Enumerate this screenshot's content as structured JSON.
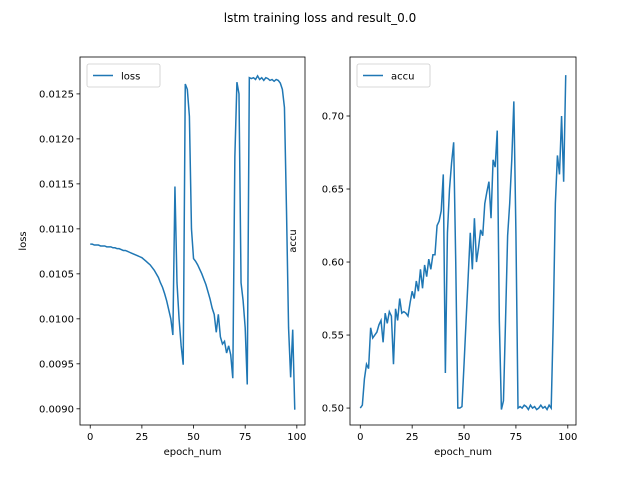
{
  "title": "lstm training loss and result_0.0",
  "chart_data": [
    {
      "type": "line",
      "xlabel": "epoch_num",
      "ylabel": "loss",
      "legend": "upper left",
      "x": [
        0,
        1,
        2,
        3,
        4,
        5,
        6,
        7,
        8,
        9,
        10,
        11,
        12,
        13,
        14,
        15,
        16,
        17,
        18,
        19,
        20,
        21,
        22,
        23,
        24,
        25,
        26,
        27,
        28,
        29,
        30,
        31,
        32,
        33,
        34,
        35,
        36,
        37,
        38,
        39,
        40,
        41,
        42,
        43,
        44,
        45,
        46,
        47,
        48,
        49,
        50,
        51,
        52,
        53,
        54,
        55,
        56,
        57,
        58,
        59,
        60,
        61,
        62,
        63,
        64,
        65,
        66,
        67,
        68,
        69,
        70,
        71,
        72,
        73,
        74,
        75,
        76,
        77,
        78,
        79,
        80,
        81,
        82,
        83,
        84,
        85,
        86,
        87,
        88,
        89,
        90,
        91,
        92,
        93,
        94,
        95,
        96,
        97,
        98,
        99
      ],
      "series": [
        {
          "name": "loss",
          "color": "#1f77b4",
          "values": [
            0.01083,
            0.01083,
            0.01082,
            0.01082,
            0.01082,
            0.01081,
            0.01081,
            0.01081,
            0.0108,
            0.0108,
            0.0108,
            0.01079,
            0.01079,
            0.01078,
            0.01078,
            0.01077,
            0.01076,
            0.01076,
            0.01075,
            0.01074,
            0.01073,
            0.01072,
            0.01071,
            0.0107,
            0.01069,
            0.01068,
            0.01066,
            0.01064,
            0.01062,
            0.0106,
            0.01057,
            0.01054,
            0.0105,
            0.01046,
            0.0104,
            0.01035,
            0.01028,
            0.0102,
            0.0101,
            0.01,
            0.00982,
            0.01147,
            0.0104,
            0.01,
            0.0097,
            0.00949,
            0.01261,
            0.01255,
            0.01225,
            0.011,
            0.01067,
            0.01064,
            0.0106,
            0.01055,
            0.0105,
            0.01044,
            0.01038,
            0.0103,
            0.01022,
            0.01012,
            0.01005,
            0.00985,
            0.01005,
            0.0098,
            0.00972,
            0.00975,
            0.00962,
            0.0097,
            0.0096,
            0.00934,
            0.0118,
            0.01263,
            0.0125,
            0.0104,
            0.0102,
            0.0099,
            0.00927,
            0.01268,
            0.01267,
            0.01268,
            0.01266,
            0.0127,
            0.01266,
            0.01268,
            0.01265,
            0.01268,
            0.01267,
            0.01265,
            0.01266,
            0.01264,
            0.01266,
            0.01265,
            0.01262,
            0.01255,
            0.01235,
            0.0112,
            0.0099,
            0.00935,
            0.00988,
            0.00899
          ]
        }
      ],
      "xlim": [
        -4.95,
        103.95
      ],
      "ylim": [
        0.00882,
        0.01291
      ],
      "xticks": [
        0,
        25,
        50,
        75,
        100
      ],
      "yticks": [
        {
          "value": 0.009,
          "label": "0.0090"
        },
        0.0095,
        {
          "value": 0.01,
          "label": "0.0100"
        },
        0.0105,
        {
          "value": 0.011,
          "label": "0.0110"
        },
        0.0115,
        {
          "value": 0.012,
          "label": "0.0120"
        },
        0.0125
      ]
    },
    {
      "type": "line",
      "xlabel": "epoch_num",
      "ylabel": "accu",
      "legend": "upper left",
      "x": [
        0,
        1,
        2,
        3,
        4,
        5,
        6,
        7,
        8,
        9,
        10,
        11,
        12,
        13,
        14,
        15,
        16,
        17,
        18,
        19,
        20,
        21,
        22,
        23,
        24,
        25,
        26,
        27,
        28,
        29,
        30,
        31,
        32,
        33,
        34,
        35,
        36,
        37,
        38,
        39,
        40,
        41,
        42,
        43,
        44,
        45,
        46,
        47,
        48,
        49,
        50,
        51,
        52,
        53,
        54,
        55,
        56,
        57,
        58,
        59,
        60,
        61,
        62,
        63,
        64,
        65,
        66,
        67,
        68,
        69,
        70,
        71,
        72,
        73,
        74,
        75,
        76,
        77,
        78,
        79,
        80,
        81,
        82,
        83,
        84,
        85,
        86,
        87,
        88,
        89,
        90,
        91,
        92,
        93,
        94,
        95,
        96,
        97,
        98,
        99
      ],
      "series": [
        {
          "name": "accu",
          "color": "#1f77b4",
          "values": [
            0.5,
            0.502,
            0.52,
            0.53,
            0.527,
            0.555,
            0.548,
            0.55,
            0.552,
            0.557,
            0.56,
            0.545,
            0.565,
            0.558,
            0.566,
            0.563,
            0.53,
            0.568,
            0.56,
            0.575,
            0.565,
            0.566,
            0.565,
            0.563,
            0.572,
            0.58,
            0.575,
            0.587,
            0.58,
            0.595,
            0.582,
            0.598,
            0.59,
            0.602,
            0.595,
            0.605,
            0.605,
            0.625,
            0.628,
            0.635,
            0.66,
            0.524,
            0.62,
            0.65,
            0.668,
            0.682,
            0.6,
            0.5,
            0.5,
            0.501,
            0.53,
            0.56,
            0.59,
            0.62,
            0.595,
            0.63,
            0.6,
            0.61,
            0.622,
            0.618,
            0.64,
            0.648,
            0.655,
            0.63,
            0.67,
            0.665,
            0.69,
            0.56,
            0.499,
            0.505,
            0.56,
            0.618,
            0.64,
            0.67,
            0.71,
            0.62,
            0.5,
            0.501,
            0.5,
            0.502,
            0.501,
            0.499,
            0.502,
            0.5,
            0.501,
            0.499,
            0.5,
            0.502,
            0.5,
            0.501,
            0.499,
            0.502,
            0.5,
            0.56,
            0.64,
            0.673,
            0.66,
            0.7,
            0.655,
            0.728
          ]
        }
      ],
      "xlim": [
        -4.95,
        103.95
      ],
      "ylim": [
        0.4884,
        0.7404
      ],
      "xticks": [
        0,
        25,
        50,
        75,
        100
      ],
      "yticks": [
        {
          "value": 0.5,
          "label": "0.50"
        },
        0.55,
        {
          "value": 0.6,
          "label": "0.60"
        },
        0.65,
        {
          "value": 0.7,
          "label": "0.70"
        }
      ]
    }
  ]
}
